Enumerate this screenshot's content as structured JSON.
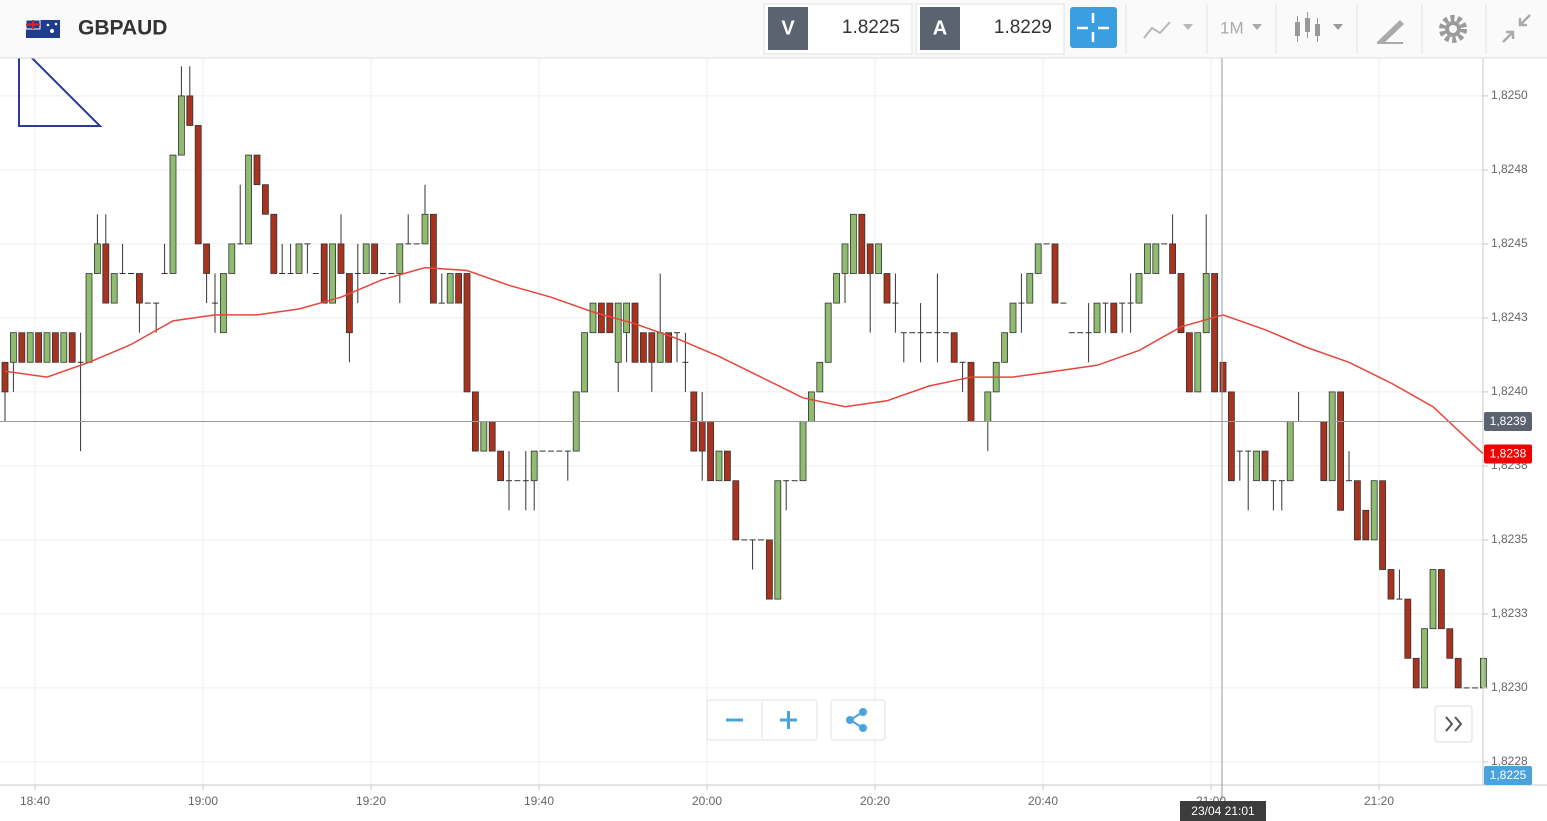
{
  "header": {
    "symbol": "GBPAUD",
    "sell_label": "V",
    "sell_price": 1.8225,
    "buy_label": "A",
    "buy_price": 1.8229,
    "timeframe": "1M"
  },
  "chart_data": {
    "type": "candlestick",
    "up_color": "#8fbc6f",
    "down_color": "#a8331f",
    "ylim": [
      1.822672,
      1.825128
    ],
    "yticks": [
      {
        "value": 1.825,
        "label": "1,8250"
      },
      {
        "value": 1.82475,
        "label": "1,8248"
      },
      {
        "value": 1.8245,
        "label": "1,8245"
      },
      {
        "value": 1.82425,
        "label": "1,8243"
      },
      {
        "value": 1.824,
        "label": "1,8240"
      },
      {
        "value": 1.82375,
        "label": "1,8238"
      },
      {
        "value": 1.8235,
        "label": "1,8235"
      },
      {
        "value": 1.82325,
        "label": "1,8233"
      },
      {
        "value": 1.823,
        "label": "1,8230"
      },
      {
        "value": 1.82275,
        "label": "1,8228"
      }
    ],
    "x_labels": [
      "18:40",
      "19:00",
      "19:20",
      "19:40",
      "20:00",
      "20:20",
      "20:40",
      "21:00",
      "21:20"
    ],
    "grid": true,
    "candles": [
      [
        1.8241,
        1.8241,
        1.8239,
        1.824
      ],
      [
        1.8241,
        1.8242,
        1.824,
        1.8242
      ],
      [
        1.8242,
        1.8242,
        1.8241,
        1.8241
      ],
      [
        1.8241,
        1.8242,
        1.8241,
        1.8242
      ],
      [
        1.8242,
        1.8242,
        1.8241,
        1.8241
      ],
      [
        1.8241,
        1.8242,
        1.8241,
        1.8242
      ],
      [
        1.8242,
        1.8242,
        1.8241,
        1.8241
      ],
      [
        1.8241,
        1.8242,
        1.8241,
        1.8242
      ],
      [
        1.8242,
        1.8242,
        1.8241,
        1.8241
      ],
      [
        1.8241,
        1.8242,
        1.8238,
        1.8241
      ],
      [
        1.8241,
        1.8244,
        1.8241,
        1.8244
      ],
      [
        1.8244,
        1.8246,
        1.8244,
        1.8245
      ],
      [
        1.8245,
        1.8246,
        1.8243,
        1.8243
      ],
      [
        1.8243,
        1.8244,
        1.8243,
        1.8244
      ],
      [
        1.8244,
        1.8245,
        1.8244,
        1.8244
      ],
      [
        1.8244,
        1.8244,
        1.8244,
        1.8244
      ],
      [
        1.8244,
        1.8244,
        1.8242,
        1.8243
      ],
      [
        1.8243,
        1.8243,
        1.8243,
        1.8243
      ],
      [
        1.8243,
        1.8243,
        1.8242,
        1.8243
      ],
      [
        1.8244,
        1.8245,
        1.8244,
        1.8244
      ],
      [
        1.8244,
        1.8248,
        1.8244,
        1.8248
      ],
      [
        1.8248,
        1.8251,
        1.8248,
        1.825
      ],
      [
        1.825,
        1.8251,
        1.8249,
        1.8249
      ],
      [
        1.8249,
        1.8249,
        1.8245,
        1.8245
      ],
      [
        1.8245,
        1.8245,
        1.8243,
        1.8244
      ],
      [
        1.8243,
        1.8244,
        1.8242,
        1.8243
      ],
      [
        1.8242,
        1.8244,
        1.8242,
        1.8244
      ],
      [
        1.8244,
        1.8245,
        1.8244,
        1.8245
      ],
      [
        1.8245,
        1.8247,
        1.8245,
        1.8245
      ],
      [
        1.8245,
        1.8248,
        1.8245,
        1.8248
      ],
      [
        1.8248,
        1.8248,
        1.8247,
        1.8247
      ],
      [
        1.8247,
        1.8247,
        1.8246,
        1.8246
      ],
      [
        1.8246,
        1.8246,
        1.8244,
        1.8244
      ],
      [
        1.8244,
        1.8245,
        1.8244,
        1.8244
      ],
      [
        1.8244,
        1.8245,
        1.8244,
        1.8244
      ],
      [
        1.8244,
        1.8245,
        1.8244,
        1.8245
      ],
      [
        1.8245,
        1.8245,
        1.8244,
        1.8245
      ],
      [
        1.8244,
        1.8244,
        1.8244,
        1.8244
      ],
      [
        1.8245,
        1.8245,
        1.8243,
        1.8243
      ],
      [
        1.8243,
        1.8245,
        1.8243,
        1.8245
      ],
      [
        1.8245,
        1.8246,
        1.8244,
        1.8244
      ],
      [
        1.8244,
        1.8244,
        1.8241,
        1.8242
      ],
      [
        1.8244,
        1.8245,
        1.8243,
        1.8244
      ],
      [
        1.8244,
        1.8245,
        1.8244,
        1.8245
      ],
      [
        1.8245,
        1.8245,
        1.8244,
        1.8244
      ],
      [
        1.8244,
        1.8244,
        1.8244,
        1.8244
      ],
      [
        1.8244,
        1.8244,
        1.8244,
        1.8244
      ],
      [
        1.8244,
        1.8245,
        1.8243,
        1.8245
      ],
      [
        1.8245,
        1.8246,
        1.8245,
        1.8245
      ],
      [
        1.8245,
        1.8245,
        1.8245,
        1.8245
      ],
      [
        1.8245,
        1.8247,
        1.8245,
        1.8246
      ],
      [
        1.8246,
        1.8246,
        1.8243,
        1.8243
      ],
      [
        1.8243,
        1.8244,
        1.8243,
        1.8243
      ],
      [
        1.8243,
        1.8244,
        1.8243,
        1.8244
      ],
      [
        1.8244,
        1.8244,
        1.8243,
        1.8243
      ],
      [
        1.8244,
        1.8244,
        1.824,
        1.824
      ],
      [
        1.824,
        1.824,
        1.8238,
        1.8238
      ],
      [
        1.8238,
        1.8239,
        1.8238,
        1.8239
      ],
      [
        1.8239,
        1.8239,
        1.8238,
        1.8238
      ],
      [
        1.8238,
        1.8238,
        1.8237,
        1.8237
      ],
      [
        1.8237,
        1.8238,
        1.8236,
        1.8237
      ],
      [
        1.8237,
        1.8237,
        1.8237,
        1.8237
      ],
      [
        1.8237,
        1.8238,
        1.8236,
        1.8237
      ],
      [
        1.8237,
        1.8238,
        1.8236,
        1.8238
      ],
      [
        1.8238,
        1.8238,
        1.8238,
        1.8238
      ],
      [
        1.8238,
        1.8238,
        1.8238,
        1.8238
      ],
      [
        1.8238,
        1.8238,
        1.8238,
        1.8238
      ],
      [
        1.8238,
        1.8238,
        1.8237,
        1.8238
      ],
      [
        1.8238,
        1.824,
        1.8238,
        1.824
      ],
      [
        1.824,
        1.8242,
        1.824,
        1.8242
      ],
      [
        1.8242,
        1.8243,
        1.8242,
        1.8243
      ],
      [
        1.8243,
        1.8243,
        1.8242,
        1.8242
      ],
      [
        1.8243,
        1.8243,
        1.8242,
        1.8242
      ],
      [
        1.8241,
        1.8243,
        1.824,
        1.8243
      ],
      [
        1.8242,
        1.8243,
        1.8241,
        1.8243
      ],
      [
        1.8243,
        1.8243,
        1.8241,
        1.8241
      ],
      [
        1.8242,
        1.8242,
        1.8241,
        1.8241
      ],
      [
        1.8242,
        1.8242,
        1.824,
        1.8241
      ],
      [
        1.8241,
        1.8244,
        1.8241,
        1.8242
      ],
      [
        1.8242,
        1.8242,
        1.8241,
        1.8241
      ],
      [
        1.8242,
        1.8242,
        1.8241,
        1.8242
      ],
      [
        1.8241,
        1.8242,
        1.824,
        1.8241
      ],
      [
        1.824,
        1.824,
        1.8238,
        1.8238
      ],
      [
        1.8239,
        1.824,
        1.8237,
        1.8238
      ],
      [
        1.8239,
        1.8239,
        1.8237,
        1.8237
      ],
      [
        1.8237,
        1.8238,
        1.8237,
        1.8238
      ],
      [
        1.8238,
        1.8238,
        1.8237,
        1.8237
      ],
      [
        1.8237,
        1.8237,
        1.8235,
        1.8235
      ],
      [
        1.8235,
        1.8235,
        1.8235,
        1.8235
      ],
      [
        1.8235,
        1.8235,
        1.8234,
        1.8235
      ],
      [
        1.8235,
        1.8235,
        1.8235,
        1.8235
      ],
      [
        1.8235,
        1.8235,
        1.8233,
        1.8233
      ],
      [
        1.8233,
        1.8237,
        1.8233,
        1.8237
      ],
      [
        1.8237,
        1.8237,
        1.8236,
        1.8237
      ],
      [
        1.8237,
        1.8237,
        1.8237,
        1.8237
      ],
      [
        1.8237,
        1.8239,
        1.8237,
        1.8239
      ],
      [
        1.8239,
        1.824,
        1.8239,
        1.824
      ],
      [
        1.824,
        1.8241,
        1.824,
        1.8241
      ],
      [
        1.8241,
        1.8243,
        1.8241,
        1.8243
      ],
      [
        1.8243,
        1.8244,
        1.8243,
        1.8244
      ],
      [
        1.8244,
        1.8245,
        1.8243,
        1.8245
      ],
      [
        1.8244,
        1.8246,
        1.8244,
        1.8246
      ],
      [
        1.8246,
        1.8246,
        1.8244,
        1.8244
      ],
      [
        1.8245,
        1.8245,
        1.8242,
        1.8244
      ],
      [
        1.8244,
        1.8245,
        1.8244,
        1.8245
      ],
      [
        1.8244,
        1.8244,
        1.8243,
        1.8243
      ],
      [
        1.8243,
        1.8244,
        1.8242,
        1.8243
      ],
      [
        1.8242,
        1.8242,
        1.8241,
        1.8242
      ],
      [
        1.8242,
        1.8242,
        1.8242,
        1.8242
      ],
      [
        1.8242,
        1.8243,
        1.8241,
        1.8242
      ],
      [
        1.8242,
        1.8242,
        1.8242,
        1.8242
      ],
      [
        1.8242,
        1.8244,
        1.8241,
        1.8242
      ],
      [
        1.8242,
        1.8242,
        1.8242,
        1.8242
      ],
      [
        1.8242,
        1.8242,
        1.8241,
        1.8241
      ],
      [
        1.8241,
        1.8241,
        1.824,
        1.8241
      ],
      [
        1.8241,
        1.8241,
        1.8239,
        1.8239
      ],
      [
        1.8239,
        1.8239,
        1.8239,
        1.8239
      ],
      [
        1.8239,
        1.824,
        1.8238,
        1.824
      ],
      [
        1.824,
        1.8241,
        1.824,
        1.8241
      ],
      [
        1.8241,
        1.8242,
        1.8241,
        1.8242
      ],
      [
        1.8242,
        1.8243,
        1.8242,
        1.8243
      ],
      [
        1.8243,
        1.8244,
        1.8242,
        1.8243
      ],
      [
        1.8243,
        1.8244,
        1.8243,
        1.8244
      ],
      [
        1.8244,
        1.8245,
        1.8244,
        1.8245
      ],
      [
        1.8245,
        1.8245,
        1.8245,
        1.8245
      ],
      [
        1.8245,
        1.8245,
        1.8243,
        1.8243
      ],
      [
        1.8243,
        1.8243,
        1.8243,
        1.8243
      ],
      [
        1.8242,
        1.8242,
        1.8242,
        1.8242
      ],
      [
        1.8242,
        1.8242,
        1.8242,
        1.8242
      ],
      [
        1.8242,
        1.8243,
        1.8241,
        1.8242
      ],
      [
        1.8242,
        1.8243,
        1.8242,
        1.8243
      ],
      [
        1.8243,
        1.8243,
        1.8242,
        1.8243
      ],
      [
        1.8243,
        1.8243,
        1.8242,
        1.8242
      ],
      [
        1.8243,
        1.8243,
        1.8242,
        1.8243
      ],
      [
        1.8243,
        1.8244,
        1.8242,
        1.8243
      ],
      [
        1.8243,
        1.8244,
        1.8243,
        1.8244
      ],
      [
        1.8244,
        1.8245,
        1.8244,
        1.8245
      ],
      [
        1.8244,
        1.8245,
        1.8244,
        1.8245
      ],
      [
        1.8245,
        1.8245,
        1.8245,
        1.8245
      ],
      [
        1.8245,
        1.8246,
        1.8244,
        1.8244
      ],
      [
        1.8244,
        1.8244,
        1.8242,
        1.8242
      ],
      [
        1.8242,
        1.8242,
        1.824,
        1.824
      ],
      [
        1.824,
        1.8242,
        1.824,
        1.8242
      ],
      [
        1.8242,
        1.8246,
        1.8242,
        1.8244
      ],
      [
        1.8244,
        1.8244,
        1.824,
        1.824
      ],
      [
        1.8241,
        1.8241,
        1.824,
        1.824
      ],
      [
        1.824,
        1.824,
        1.8237,
        1.8237
      ],
      [
        1.8238,
        1.8238,
        1.8237,
        1.8238
      ],
      [
        1.8238,
        1.8238,
        1.8236,
        1.8238
      ],
      [
        1.8237,
        1.8238,
        1.8237,
        1.8238
      ],
      [
        1.8238,
        1.8238,
        1.8237,
        1.8237
      ],
      [
        1.8237,
        1.8237,
        1.8236,
        1.8237
      ],
      [
        1.8237,
        1.8237,
        1.8236,
        1.8237
      ],
      [
        1.8237,
        1.8239,
        1.8237,
        1.8239
      ],
      [
        1.8239,
        1.824,
        1.8239,
        1.8239
      ],
      [
        1.8239,
        1.8239,
        1.8239,
        1.8239
      ],
      [
        1.8239,
        1.8239,
        1.8239,
        1.8239
      ],
      [
        1.8239,
        1.8239,
        1.8237,
        1.8237
      ],
      [
        1.8237,
        1.824,
        1.8237,
        1.824
      ],
      [
        1.824,
        1.824,
        1.8236,
        1.8236
      ],
      [
        1.8237,
        1.8238,
        1.8237,
        1.8237
      ],
      [
        1.8237,
        1.8237,
        1.8235,
        1.8235
      ],
      [
        1.8236,
        1.8236,
        1.8235,
        1.8235
      ],
      [
        1.8235,
        1.8237,
        1.8235,
        1.8237
      ],
      [
        1.8237,
        1.8237,
        1.8234,
        1.8234
      ],
      [
        1.8234,
        1.8234,
        1.8233,
        1.8233
      ],
      [
        1.8233,
        1.8234,
        1.8233,
        1.8233
      ],
      [
        1.8233,
        1.8233,
        1.8231,
        1.8231
      ],
      [
        1.8231,
        1.8231,
        1.823,
        1.823
      ],
      [
        1.823,
        1.8232,
        1.823,
        1.8232
      ],
      [
        1.8232,
        1.8234,
        1.8232,
        1.8234
      ],
      [
        1.8234,
        1.8234,
        1.8232,
        1.8232
      ],
      [
        1.8232,
        1.8232,
        1.8231,
        1.8231
      ],
      [
        1.8231,
        1.8231,
        1.823,
        1.823
      ],
      [
        1.823,
        1.823,
        1.823,
        1.823
      ],
      [
        1.823,
        1.823,
        1.823,
        1.823
      ],
      [
        1.823,
        1.8231,
        1.823,
        1.8231
      ]
    ],
    "moving_average": {
      "color": "#e8453c",
      "x": [
        0,
        5,
        10,
        15,
        20,
        25,
        30,
        35,
        40,
        45,
        50,
        55,
        60,
        65,
        70,
        75,
        80,
        85,
        90,
        95,
        100,
        105,
        110,
        115,
        120,
        125,
        130,
        135,
        140,
        145,
        150,
        155,
        160,
        165,
        170,
        176
      ],
      "values": [
        1.82407,
        1.82405,
        1.8241,
        1.82416,
        1.82424,
        1.82426,
        1.82426,
        1.82428,
        1.82432,
        1.82438,
        1.82442,
        1.82441,
        1.82436,
        1.82432,
        1.82427,
        1.82423,
        1.82418,
        1.82412,
        1.82405,
        1.82398,
        1.82395,
        1.82397,
        1.82402,
        1.82405,
        1.82405,
        1.82407,
        1.82409,
        1.82414,
        1.82422,
        1.82426,
        1.82421,
        1.82415,
        1.8241,
        1.82403,
        1.82395,
        1.82379
      ]
    },
    "price_tags": [
      {
        "value": 1.8239,
        "label": "1,8239",
        "color": "#5b6270"
      },
      {
        "value": 1.82379,
        "label": "1,8238",
        "color": "#f20000"
      }
    ],
    "bottom_tag": {
      "label": "1,8225",
      "color": "#4aa3df"
    },
    "crosshair": {
      "label": "23/04 21:01"
    }
  }
}
